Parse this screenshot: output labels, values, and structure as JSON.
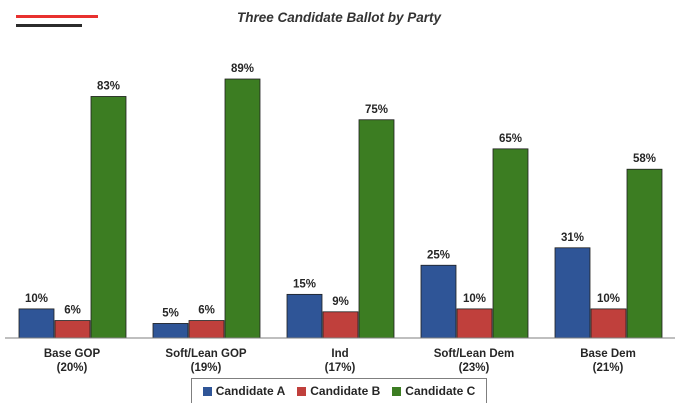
{
  "title": "Three Candidate Ballot by Party",
  "colors": {
    "accent_red": "#e8312f",
    "accent_dark": "#2b2b2b",
    "candidate_a": "#2f5597",
    "candidate_b": "#c0403c",
    "candidate_c": "#3c7d22"
  },
  "chart_data": {
    "type": "bar",
    "title": "Three Candidate Ballot by Party",
    "categories": [
      [
        "Base GOP",
        "(20%)"
      ],
      [
        "Soft/Lean GOP",
        "(19%)"
      ],
      [
        "Ind",
        "(17%)"
      ],
      [
        "Soft/Lean Dem",
        "(23%)"
      ],
      [
        "Base Dem",
        "(21%)"
      ]
    ],
    "series": [
      {
        "name": "Candidate A",
        "values": [
          10,
          5,
          15,
          25,
          31
        ],
        "labels": [
          "10%",
          "5%",
          "15%",
          "25%",
          "31%"
        ]
      },
      {
        "name": "Candidate B",
        "values": [
          6,
          6,
          9,
          10,
          10
        ],
        "labels": [
          "6%",
          "6%",
          "9%",
          "10%",
          "10%"
        ]
      },
      {
        "name": "Candidate C",
        "values": [
          83,
          89,
          75,
          65,
          58
        ],
        "labels": [
          "83%",
          "89%",
          "75%",
          "65%",
          "58%"
        ]
      }
    ],
    "ylim": [
      0,
      100
    ],
    "grid": false,
    "legend_position": "bottom"
  },
  "legend": {
    "items": [
      "Candidate A",
      "Candidate B",
      "Candidate C"
    ]
  }
}
